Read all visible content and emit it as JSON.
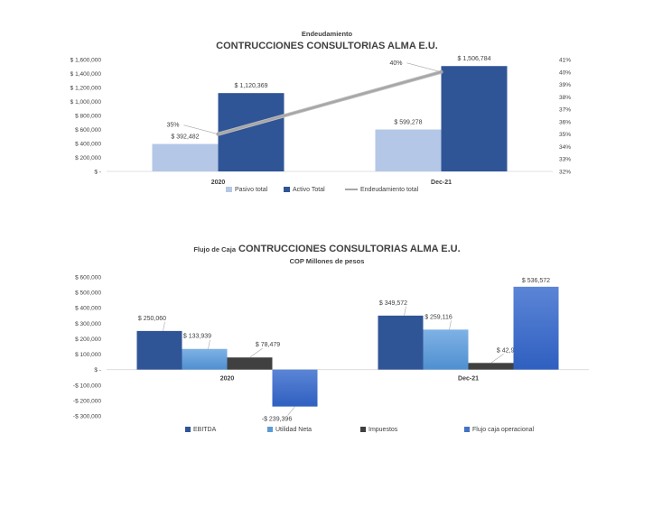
{
  "chart_data": [
    {
      "type": "bar",
      "title": "Endeudamiento",
      "subtitle": "CONTRUCCIONES CONSULTORIAS ALMA E.U.",
      "categories": [
        "2020",
        "Dec-21"
      ],
      "ylim": [
        0,
        1600000
      ],
      "yticks": [
        "$ 1,600,000",
        "$ 1,400,000",
        "$ 1,200,000",
        "$ 1,000,000",
        "$ 800,000",
        "$ 600,000",
        "$ 400,000",
        "$ 200,000",
        "$ -"
      ],
      "y2lim": [
        32,
        41
      ],
      "y2ticks": [
        "41%",
        "40%",
        "39%",
        "38%",
        "37%",
        "36%",
        "35%",
        "34%",
        "33%",
        "32%"
      ],
      "series": [
        {
          "name": "Pasivo total",
          "kind": "bar",
          "color": "#b4c7e7",
          "values": [
            392482,
            599278
          ],
          "labels": [
            "$ 392,482",
            "$ 599,278"
          ]
        },
        {
          "name": "Activo Total",
          "kind": "bar",
          "color": "#2f5597",
          "values": [
            1120369,
            1506784
          ],
          "labels": [
            "$ 1,120,369",
            "$ 1,506,784"
          ]
        },
        {
          "name": "Endeudamiento total",
          "kind": "line",
          "axis": "secondary",
          "color": "#a6a6a6",
          "values": [
            35,
            40
          ],
          "labels": [
            "35%",
            "40%"
          ]
        }
      ],
      "legend_position": "bottom",
      "grid": false
    },
    {
      "type": "bar",
      "title_prefix": "Flujo de Caja",
      "title": "CONTRUCCIONES CONSULTORIAS ALMA E.U.",
      "subtitle": "COP Millones de pesos",
      "categories": [
        "2020",
        "Dec-21"
      ],
      "ylim": [
        -300000,
        600000
      ],
      "yticks": [
        "$ 600,000",
        "$ 500,000",
        "$ 400,000",
        "$ 300,000",
        "$ 200,000",
        "$ 100,000",
        "$ -",
        "-$ 100,000",
        "-$ 200,000",
        "-$ 300,000"
      ],
      "series": [
        {
          "name": "EBITDA",
          "color": "#2f5597",
          "values": [
            250060,
            349572
          ],
          "labels": [
            "$ 250,060",
            "$ 349,572"
          ]
        },
        {
          "name": "Utilidad Neta",
          "color": "#5b9bd5",
          "values": [
            133939,
            259116
          ],
          "labels": [
            "$ 133,939",
            "$ 259,116"
          ]
        },
        {
          "name": "Impuestos",
          "color": "#404040",
          "values": [
            78479,
            42903
          ],
          "labels": [
            "$ 78,479",
            "$ 42,903"
          ]
        },
        {
          "name": "Flujo caja operacional",
          "color": "#4472c4",
          "values": [
            -239396,
            536572
          ],
          "labels": [
            "-$ 239,396",
            "$ 536,572"
          ]
        }
      ],
      "legend_position": "bottom",
      "grid": false
    }
  ]
}
